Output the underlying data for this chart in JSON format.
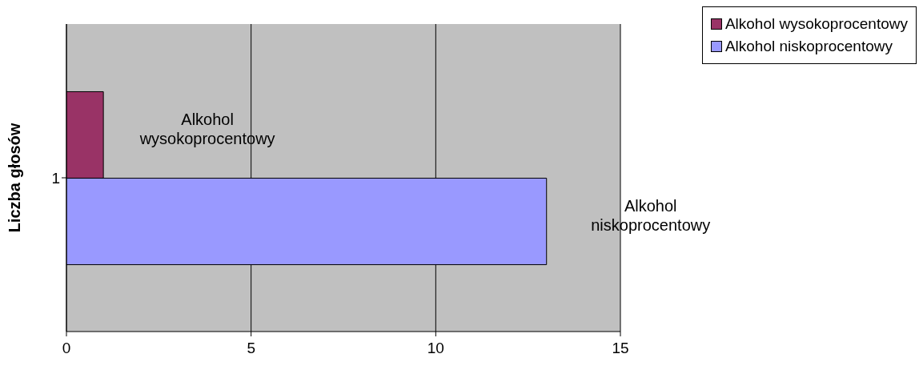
{
  "chart_data": {
    "type": "bar",
    "orientation": "horizontal",
    "ylabel": "Liczba głosów",
    "categories": [
      "1"
    ],
    "series": [
      {
        "name": "Alkohol wysokoprocentowy",
        "color": "#993366",
        "values": [
          1
        ]
      },
      {
        "name": "Alkohol niskoprocentowy",
        "color": "#9999ff",
        "values": [
          13
        ]
      }
    ],
    "xlim": [
      0,
      15
    ],
    "xticks": [
      0,
      5,
      10,
      15
    ],
    "grid": "x",
    "legend": "top right"
  }
}
